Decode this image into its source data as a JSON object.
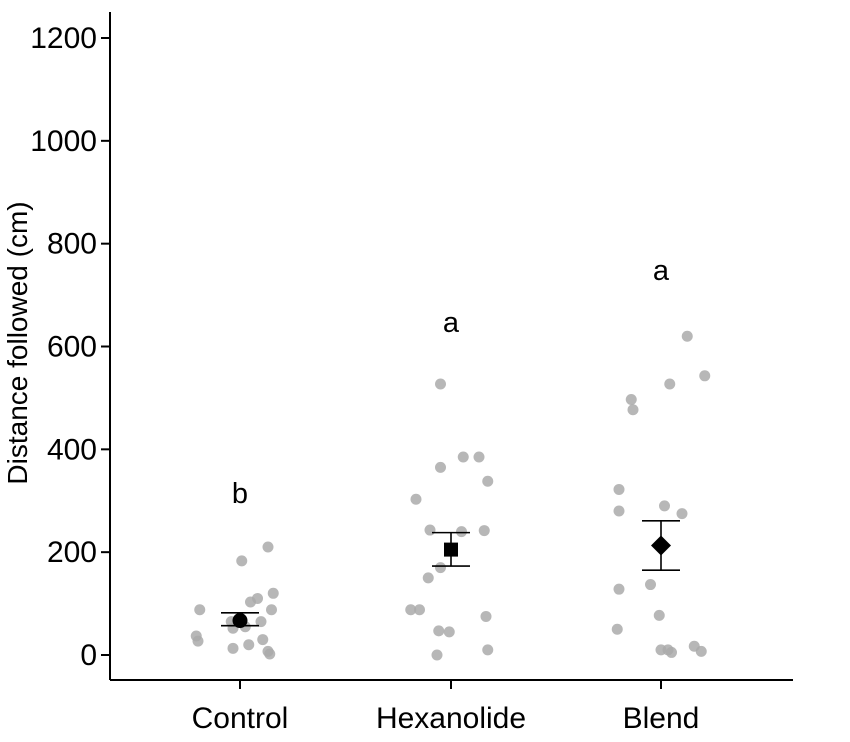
{
  "chart_data": {
    "type": "scatter",
    "title": "",
    "xlabel": "",
    "ylabel": "Distance followed (cm)",
    "ylim": [
      -50,
      1250
    ],
    "yticks": [
      0,
      200,
      400,
      600,
      800,
      1000,
      1200
    ],
    "grid": false,
    "categories": [
      "Control",
      "Hexanolide",
      "Blend"
    ],
    "points_color": "#aaaaaa",
    "mean_color": "#000000",
    "groups": [
      {
        "category": "Control",
        "significance_letter": "b",
        "mean_marker": "circle",
        "mean": 67,
        "se_low": 57,
        "se_high": 82,
        "points": [
          {
            "dx": -0.23,
            "y": 88
          },
          {
            "dx": -0.25,
            "y": 37
          },
          {
            "dx": -0.24,
            "y": 27
          },
          {
            "dx": 0.01,
            "y": 183
          },
          {
            "dx": 0.16,
            "y": 210
          },
          {
            "dx": 0.19,
            "y": 120
          },
          {
            "dx": 0.18,
            "y": 88
          },
          {
            "dx": 0.1,
            "y": 110
          },
          {
            "dx": 0.06,
            "y": 103
          },
          {
            "dx": -0.05,
            "y": 65
          },
          {
            "dx": -0.04,
            "y": 52
          },
          {
            "dx": 0.03,
            "y": 55
          },
          {
            "dx": 0.12,
            "y": 65
          },
          {
            "dx": 0.13,
            "y": 30
          },
          {
            "dx": 0.05,
            "y": 20
          },
          {
            "dx": -0.04,
            "y": 13
          },
          {
            "dx": 0.16,
            "y": 7
          },
          {
            "dx": 0.17,
            "y": 2
          }
        ]
      },
      {
        "category": "Hexanolide",
        "significance_letter": "a",
        "mean_marker": "square",
        "mean": 205,
        "se_low": 173,
        "se_high": 238,
        "points": [
          {
            "dx": -0.06,
            "y": 527
          },
          {
            "dx": -0.06,
            "y": 365
          },
          {
            "dx": 0.07,
            "y": 385
          },
          {
            "dx": 0.16,
            "y": 385
          },
          {
            "dx": 0.21,
            "y": 338
          },
          {
            "dx": -0.2,
            "y": 303
          },
          {
            "dx": -0.12,
            "y": 243
          },
          {
            "dx": 0.06,
            "y": 240
          },
          {
            "dx": 0.19,
            "y": 242
          },
          {
            "dx": -0.13,
            "y": 150
          },
          {
            "dx": -0.06,
            "y": 170
          },
          {
            "dx": -0.23,
            "y": 88
          },
          {
            "dx": -0.18,
            "y": 88
          },
          {
            "dx": 0.2,
            "y": 75
          },
          {
            "dx": -0.07,
            "y": 47
          },
          {
            "dx": -0.01,
            "y": 45
          },
          {
            "dx": -0.08,
            "y": 0
          },
          {
            "dx": 0.21,
            "y": 10
          }
        ]
      },
      {
        "category": "Blend",
        "significance_letter": "a",
        "mean_marker": "diamond",
        "mean": 213,
        "se_low": 165,
        "se_high": 261,
        "points": [
          {
            "dx": 0.15,
            "y": 620
          },
          {
            "dx": 0.25,
            "y": 543
          },
          {
            "dx": 0.05,
            "y": 527
          },
          {
            "dx": -0.17,
            "y": 497
          },
          {
            "dx": -0.16,
            "y": 477
          },
          {
            "dx": -0.24,
            "y": 322
          },
          {
            "dx": -0.24,
            "y": 280
          },
          {
            "dx": 0.02,
            "y": 290
          },
          {
            "dx": 0.12,
            "y": 275
          },
          {
            "dx": -0.06,
            "y": 137
          },
          {
            "dx": -0.24,
            "y": 128
          },
          {
            "dx": -0.01,
            "y": 77
          },
          {
            "dx": -0.25,
            "y": 50
          },
          {
            "dx": 0.0,
            "y": 10
          },
          {
            "dx": 0.04,
            "y": 10
          },
          {
            "dx": 0.06,
            "y": 5
          },
          {
            "dx": 0.19,
            "y": 17
          },
          {
            "dx": 0.23,
            "y": 7
          }
        ]
      }
    ]
  }
}
